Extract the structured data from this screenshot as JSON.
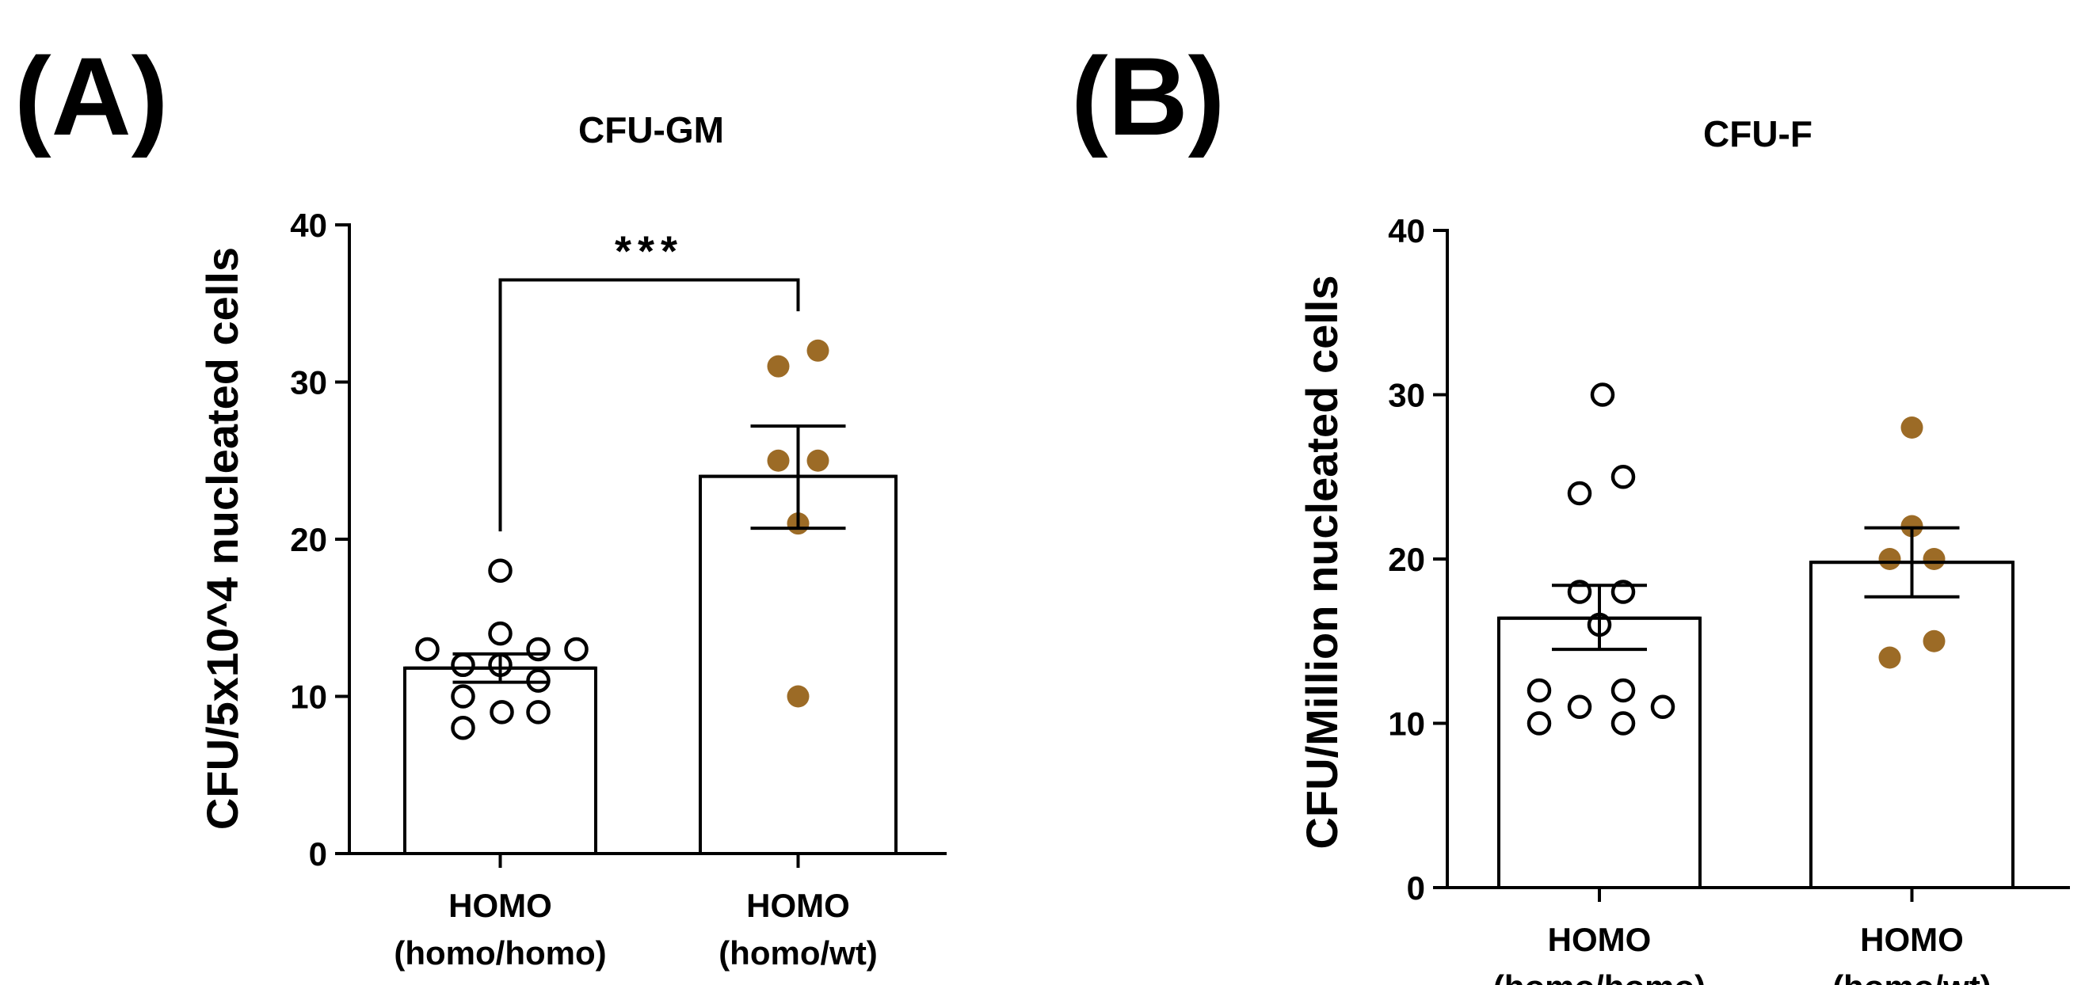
{
  "colors": {
    "hollow": "#000000",
    "filled": "#9c6b26",
    "axis": "#000000"
  },
  "chart_data": [
    {
      "panel_label": "(A)",
      "type": "bar",
      "title": "CFU-GM",
      "ylabel": "CFU/5x10^4 nucleated cells",
      "ylim": [
        0,
        40
      ],
      "yticks": [
        "0",
        "10",
        "20",
        "30",
        "40"
      ],
      "categories": [
        {
          "line1": "HOMO",
          "line2": "(homo/homo)"
        },
        {
          "line1": "HOMO",
          "line2": "(homo/wt)"
        }
      ],
      "series": [
        {
          "name": "HOMO (homo/homo)",
          "mean": 11.8,
          "sem_low": 10.9,
          "sem_high": 12.7,
          "filled": false,
          "points": [
            18,
            14,
            13,
            13,
            13,
            12,
            12,
            11,
            10,
            9,
            9,
            8
          ]
        },
        {
          "name": "HOMO (homo/wt)",
          "mean": 24.0,
          "sem_low": 20.7,
          "sem_high": 27.2,
          "filled": true,
          "points": [
            32,
            31,
            25,
            25,
            21,
            10
          ]
        }
      ],
      "significance": {
        "label": "***",
        "left_y": 20.5,
        "top_y": 36.5,
        "right_y": 34.5
      }
    },
    {
      "panel_label": "(B)",
      "type": "bar",
      "title": "CFU-F",
      "ylabel": "CFU/Million nucleated cells",
      "ylim": [
        0,
        40
      ],
      "yticks": [
        "0",
        "10",
        "20",
        "30",
        "40"
      ],
      "categories": [
        {
          "line1": "HOMO",
          "line2": "(homo/homo)"
        },
        {
          "line1": "HOMO",
          "line2": "(homo/wt)"
        }
      ],
      "series": [
        {
          "name": "HOMO (homo/homo)",
          "mean": 16.4,
          "sem_low": 14.5,
          "sem_high": 18.4,
          "filled": false,
          "points": [
            30,
            25,
            24,
            18,
            18,
            16,
            12,
            12,
            11,
            11,
            10,
            10
          ]
        },
        {
          "name": "HOMO (homo/wt)",
          "mean": 19.8,
          "sem_low": 17.7,
          "sem_high": 21.9,
          "filled": true,
          "points": [
            28,
            22,
            20,
            20,
            15,
            14
          ]
        }
      ]
    }
  ]
}
